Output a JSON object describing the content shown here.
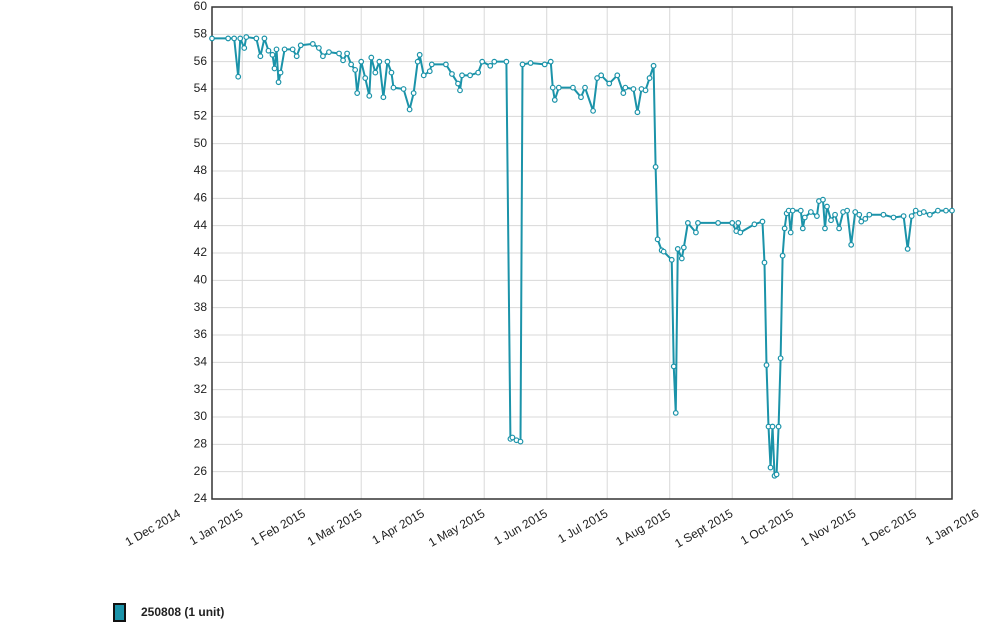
{
  "chart_data": {
    "type": "line",
    "x": [
      "2014-12-17",
      "2014-12-25",
      "2014-12-28",
      "2014-12-30",
      "2014-12-31",
      "2015-01-02",
      "2015-01-03",
      "2015-01-08",
      "2015-01-10",
      "2015-01-12",
      "2015-01-14",
      "2015-01-16",
      "2015-01-17",
      "2015-01-18",
      "2015-01-19",
      "2015-01-20",
      "2015-01-22",
      "2015-01-26",
      "2015-01-28",
      "2015-01-30",
      "2015-02-05",
      "2015-02-08",
      "2015-02-10",
      "2015-02-13",
      "2015-02-18",
      "2015-02-20",
      "2015-02-22",
      "2015-02-24",
      "2015-02-26",
      "2015-02-27",
      "2015-03-01",
      "2015-03-03",
      "2015-03-05",
      "2015-03-06",
      "2015-03-08",
      "2015-03-10",
      "2015-03-12",
      "2015-03-14",
      "2015-03-16",
      "2015-03-17",
      "2015-03-22",
      "2015-03-25",
      "2015-03-27",
      "2015-03-29",
      "2015-03-30",
      "2015-04-01",
      "2015-04-04",
      "2015-04-05",
      "2015-04-12",
      "2015-04-15",
      "2015-04-18",
      "2015-04-19",
      "2015-04-20",
      "2015-04-24",
      "2015-04-28",
      "2015-04-30",
      "2015-05-04",
      "2015-05-06",
      "2015-05-12",
      "2015-05-14",
      "2015-05-15",
      "2015-05-17",
      "2015-05-19",
      "2015-05-20",
      "2015-05-24",
      "2015-05-31",
      "2015-06-03",
      "2015-06-04",
      "2015-06-05",
      "2015-06-07",
      "2015-06-14",
      "2015-06-18",
      "2015-06-20",
      "2015-06-24",
      "2015-06-26",
      "2015-06-28",
      "2015-07-02",
      "2015-07-06",
      "2015-07-09",
      "2015-07-10",
      "2015-07-14",
      "2015-07-16",
      "2015-07-18",
      "2015-07-20",
      "2015-07-22",
      "2015-07-24",
      "2015-07-25",
      "2015-07-26",
      "2015-07-28",
      "2015-07-29",
      "2015-08-02",
      "2015-08-03",
      "2015-08-04",
      "2015-08-05",
      "2015-08-07",
      "2015-08-08",
      "2015-08-10",
      "2015-08-14",
      "2015-08-15",
      "2015-08-25",
      "2015-09-01",
      "2015-09-03",
      "2015-09-04",
      "2015-09-05",
      "2015-09-12",
      "2015-09-16",
      "2015-09-17",
      "2015-09-18",
      "2015-09-19",
      "2015-09-20",
      "2015-09-21",
      "2015-09-22",
      "2015-09-23",
      "2015-09-24",
      "2015-09-25",
      "2015-09-26",
      "2015-09-27",
      "2015-09-28",
      "2015-09-29",
      "2015-09-30",
      "2015-10-01",
      "2015-10-05",
      "2015-10-06",
      "2015-10-07",
      "2015-10-10",
      "2015-10-13",
      "2015-10-14",
      "2015-10-16",
      "2015-10-17",
      "2015-10-18",
      "2015-10-20",
      "2015-10-22",
      "2015-10-24",
      "2015-10-26",
      "2015-10-28",
      "2015-10-30",
      "2015-11-01",
      "2015-11-03",
      "2015-11-04",
      "2015-11-06",
      "2015-11-08",
      "2015-11-15",
      "2015-11-20",
      "2015-11-25",
      "2015-11-27",
      "2015-11-29",
      "2015-12-01",
      "2015-12-03",
      "2015-12-05",
      "2015-12-08",
      "2015-12-12",
      "2015-12-16",
      "2015-12-19"
    ],
    "series": [
      {
        "name": "250808 (1 unit)",
        "color": "#1b93a9",
        "values": [
          57.7,
          57.7,
          57.7,
          54.9,
          57.7,
          57.0,
          57.8,
          57.7,
          56.4,
          57.7,
          56.8,
          56.5,
          55.5,
          56.9,
          54.5,
          55.2,
          56.9,
          56.9,
          56.4,
          57.2,
          57.3,
          57.0,
          56.4,
          56.7,
          56.6,
          56.1,
          56.6,
          55.8,
          55.4,
          53.7,
          56.0,
          54.8,
          53.5,
          56.3,
          55.2,
          56.0,
          53.4,
          56.0,
          55.2,
          54.1,
          54.0,
          52.5,
          53.7,
          56.0,
          56.5,
          55.0,
          55.3,
          55.8,
          55.8,
          55.1,
          54.4,
          53.9,
          55.0,
          55.0,
          55.2,
          56.0,
          55.7,
          56.0,
          56.0,
          28.4,
          28.5,
          28.3,
          28.2,
          55.8,
          55.9,
          55.8,
          56.0,
          54.1,
          53.2,
          54.1,
          54.1,
          53.4,
          54.1,
          52.4,
          54.8,
          55.0,
          54.4,
          55.0,
          53.7,
          54.1,
          54.0,
          52.3,
          54.0,
          53.9,
          54.8,
          55.7,
          48.3,
          43.0,
          42.2,
          42.1,
          41.5,
          33.7,
          30.3,
          42.3,
          41.6,
          42.4,
          44.2,
          43.5,
          44.2,
          44.2,
          44.2,
          43.6,
          44.2,
          43.5,
          44.1,
          44.3,
          41.3,
          33.8,
          29.3,
          26.3,
          29.3,
          25.7,
          25.8,
          29.3,
          34.3,
          41.8,
          43.8,
          44.9,
          45.1,
          43.5,
          45.1,
          45.1,
          43.8,
          44.6,
          45.0,
          44.7,
          45.8,
          45.9,
          43.8,
          45.4,
          44.4,
          44.8,
          43.8,
          45.0,
          45.1,
          42.6,
          45.0,
          44.8,
          44.3,
          44.5,
          44.8,
          44.8,
          44.6,
          44.7,
          42.3,
          44.7,
          45.1,
          44.9,
          45.0,
          44.8,
          45.1,
          45.1,
          45.1
        ]
      }
    ],
    "xlim": [
      "2014-12-17",
      "2015-12-19"
    ],
    "xticks": [
      {
        "value": "2014-12-01",
        "label": "1 Dec 2014"
      },
      {
        "value": "2015-01-01",
        "label": "1 Jan 2015"
      },
      {
        "value": "2015-02-01",
        "label": "1 Feb 2015"
      },
      {
        "value": "2015-03-01",
        "label": "1 Mar 2015"
      },
      {
        "value": "2015-04-01",
        "label": "1 Apr 2015"
      },
      {
        "value": "2015-05-01",
        "label": "1 May 2015"
      },
      {
        "value": "2015-06-01",
        "label": "1 Jun 2015"
      },
      {
        "value": "2015-07-01",
        "label": "1 Jul 2015"
      },
      {
        "value": "2015-08-01",
        "label": "1 Aug 2015"
      },
      {
        "value": "2015-09-01",
        "label": "1 Sept 2015"
      },
      {
        "value": "2015-10-01",
        "label": "1 Oct 2015"
      },
      {
        "value": "2015-11-01",
        "label": "1 Nov 2015"
      },
      {
        "value": "2015-12-01",
        "label": "1 Dec 2015"
      },
      {
        "value": "2016-01-01",
        "label": "1 Jan 2016"
      }
    ],
    "ylim": [
      24,
      60
    ],
    "yticks": [
      24,
      26,
      28,
      30,
      32,
      34,
      36,
      38,
      40,
      42,
      44,
      46,
      48,
      50,
      52,
      54,
      56,
      58,
      60
    ],
    "grid": true
  }
}
